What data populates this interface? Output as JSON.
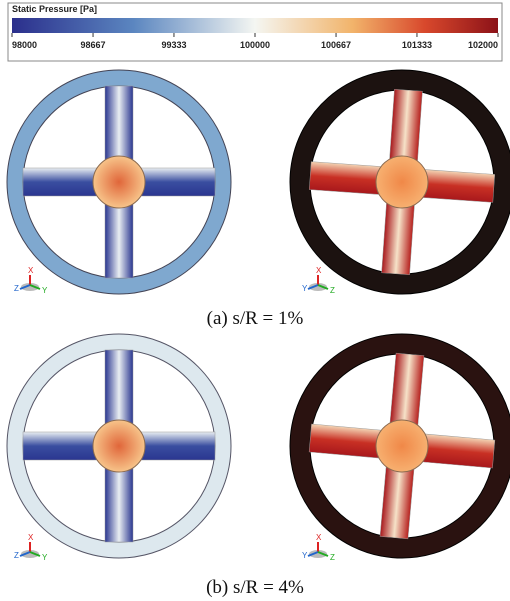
{
  "colorbar": {
    "title": "Static Pressure [Pa]",
    "min": 98000,
    "max": 102000,
    "ticks": [
      98000,
      98667,
      99333,
      100000,
      100667,
      101333,
      102000
    ]
  },
  "panels": [
    {
      "triad": [
        "Z",
        "X",
        "Y"
      ]
    },
    {
      "triad": [
        "Y",
        "X",
        "Z"
      ]
    },
    {
      "triad": [
        "Z",
        "X",
        "Y"
      ]
    },
    {
      "triad": [
        "Y",
        "X",
        "Z"
      ]
    }
  ],
  "captions": [
    "(a) s/R = 1%",
    "(b) s/R = 4%"
  ]
}
